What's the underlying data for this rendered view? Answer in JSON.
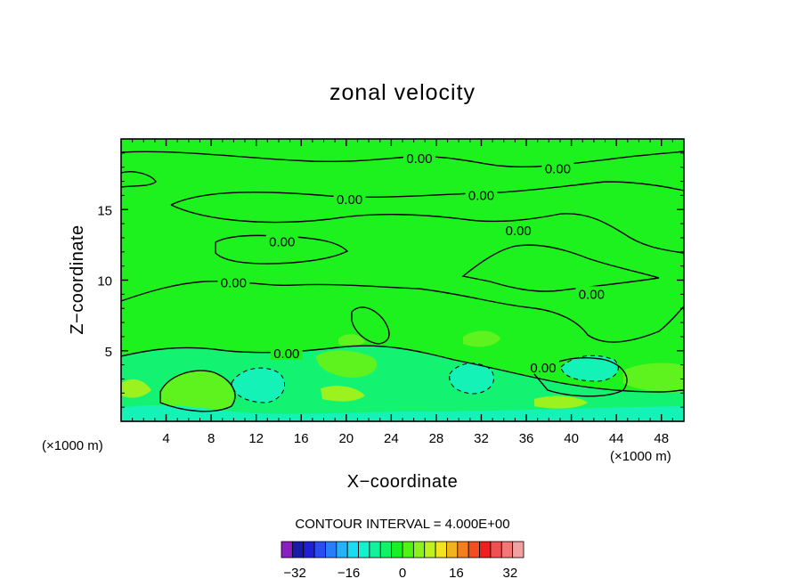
{
  "chart_data": {
    "type": "heatmap",
    "title": "zonal velocity",
    "xlabel": "X−coordinate",
    "ylabel": "Z−coordinate",
    "x_unit_label": "(×1000 m)",
    "z_unit_label": "(×1000 m)",
    "xlim": [
      0,
      50
    ],
    "ylim": [
      0,
      20
    ],
    "x_ticks": [
      4,
      8,
      12,
      16,
      20,
      24,
      28,
      32,
      36,
      40,
      44,
      48
    ],
    "y_ticks": [
      5,
      10,
      15
    ],
    "contour_labels": [
      {
        "x": 26.5,
        "z": 18.6,
        "text": "0.00"
      },
      {
        "x": 38.8,
        "z": 17.9,
        "text": "0.00"
      },
      {
        "x": 20.3,
        "z": 15.7,
        "text": "0.00"
      },
      {
        "x": 32.0,
        "z": 16.0,
        "text": "0.00"
      },
      {
        "x": 14.3,
        "z": 12.7,
        "text": "0.00"
      },
      {
        "x": 35.3,
        "z": 13.5,
        "text": "0.00"
      },
      {
        "x": 10.0,
        "z": 9.8,
        "text": "0.00"
      },
      {
        "x": 41.8,
        "z": 9.0,
        "text": "0.00"
      },
      {
        "x": 14.7,
        "z": 4.8,
        "text": "0.00"
      },
      {
        "x": 37.5,
        "z": 3.8,
        "text": "0.00"
      }
    ],
    "contour_interval_label": "CONTOUR INTERVAL = 4.000E+00",
    "colorbar": {
      "min": -36,
      "max": 36,
      "step": 4,
      "labels": [
        -32,
        -16,
        0,
        16,
        32
      ],
      "colors": [
        "#8a1fbf",
        "#1a1aa8",
        "#1f1fd6",
        "#2a4df2",
        "#2a7dfa",
        "#25b2f8",
        "#18dcf2",
        "#12f2cc",
        "#12f29a",
        "#12f266",
        "#18f225",
        "#52f212",
        "#8cf21e",
        "#bef21e",
        "#f2e41e",
        "#f2b41e",
        "#f2801e",
        "#f24e1e",
        "#f21e1e",
        "#f25050",
        "#f27878",
        "#f2a0a0"
      ]
    },
    "field_colors": {
      "base": "#1ef21e",
      "positive": "#5ef21e",
      "strong_positive": "#9cf21e",
      "negative": "#14f272",
      "strong_negative": "#14f2b8"
    }
  }
}
